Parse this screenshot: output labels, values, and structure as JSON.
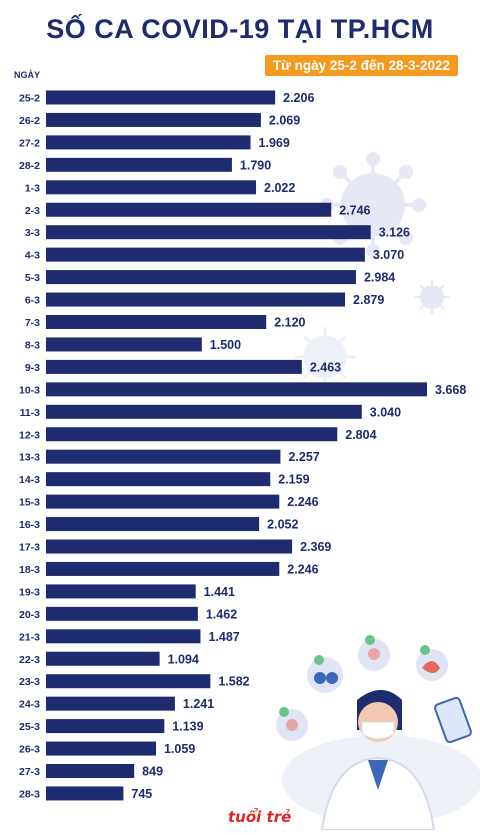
{
  "header": {
    "title": "SỐ CA COVID-19 TẠI TP.HCM",
    "subtitle": "Từ ngày 25-2 đến 28-3-2022"
  },
  "brand": {
    "watermark": "tuổi trẻ"
  },
  "colors": {
    "bar": "#1e2b6e",
    "accent": "#f39a1f",
    "text": "#1e2b6e"
  },
  "chart_data": {
    "type": "bar",
    "orientation": "horizontal",
    "title": "SỐ CA COVID-19 TẠI TP.HCM",
    "subtitle": "Từ ngày 25-2 đến 28-3-2022",
    "ylabel": "NGÀY",
    "xlim": [
      0,
      3668
    ],
    "categories": [
      "25-2",
      "26-2",
      "27-2",
      "28-2",
      "1-3",
      "2-3",
      "3-3",
      "4-3",
      "5-3",
      "6-3",
      "7-3",
      "8-3",
      "9-3",
      "10-3",
      "11-3",
      "12-3",
      "13-3",
      "14-3",
      "15-3",
      "16-3",
      "17-3",
      "18-3",
      "19-3",
      "20-3",
      "21-3",
      "22-3",
      "23-3",
      "24-3",
      "25-3",
      "26-3",
      "27-3",
      "28-3"
    ],
    "values": [
      2206,
      2069,
      1969,
      1790,
      2022,
      2746,
      3126,
      3070,
      2984,
      2879,
      2120,
      1500,
      2463,
      3668,
      3040,
      2804,
      2257,
      2159,
      2246,
      2052,
      2369,
      2246,
      1441,
      1462,
      1487,
      1094,
      1582,
      1241,
      1139,
      1059,
      849,
      745
    ],
    "value_labels": [
      "2.206",
      "2.069",
      "1.969",
      "1.790",
      "2.022",
      "2.746",
      "3.126",
      "3.070",
      "2.984",
      "2.879",
      "2.120",
      "1.500",
      "2.463",
      "3.668",
      "3.040",
      "2.804",
      "2.257",
      "2.159",
      "2.246",
      "2.052",
      "2.369",
      "2.246",
      "1.441",
      "1.462",
      "1.487",
      "1.094",
      "1.582",
      "1.241",
      "1.139",
      "1.059",
      "849",
      "745"
    ],
    "grid": false,
    "legend": "none"
  }
}
